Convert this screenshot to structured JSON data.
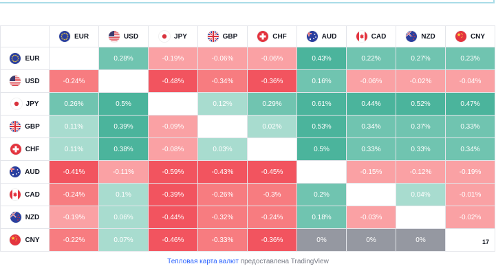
{
  "currencies": [
    "EUR",
    "USD",
    "JPY",
    "GBP",
    "CHF",
    "AUD",
    "CAD",
    "NZD",
    "CNY"
  ],
  "matrix": [
    [
      null,
      "0.28%",
      "-0.19%",
      "-0.06%",
      "-0.06%",
      "0.43%",
      "0.22%",
      "0.27%",
      "0.23%"
    ],
    [
      "-0.24%",
      null,
      "-0.48%",
      "-0.34%",
      "-0.36%",
      "0.16%",
      "-0.06%",
      "-0.02%",
      "-0.04%"
    ],
    [
      "0.26%",
      "0.5%",
      null,
      "0.12%",
      "0.29%",
      "0.61%",
      "0.44%",
      "0.52%",
      "0.47%"
    ],
    [
      "0.11%",
      "0.39%",
      "-0.09%",
      null,
      "0.02%",
      "0.53%",
      "0.34%",
      "0.37%",
      "0.33%"
    ],
    [
      "0.11%",
      "0.38%",
      "-0.08%",
      "0.03%",
      null,
      "0.5%",
      "0.33%",
      "0.33%",
      "0.34%"
    ],
    [
      "-0.41%",
      "-0.11%",
      "-0.59%",
      "-0.43%",
      "-0.45%",
      null,
      "-0.15%",
      "-0.12%",
      "-0.19%"
    ],
    [
      "-0.24%",
      "0.1%",
      "-0.39%",
      "-0.26%",
      "-0.3%",
      "0.2%",
      null,
      "0.04%",
      "-0.01%"
    ],
    [
      "-0.19%",
      "0.06%",
      "-0.44%",
      "-0.32%",
      "-0.24%",
      "0.18%",
      "-0.03%",
      null,
      "-0.02%"
    ],
    [
      "-0.22%",
      "0.07%",
      "-0.46%",
      "-0.33%",
      "-0.36%",
      "0%",
      "0%",
      "0%",
      null
    ]
  ],
  "tv_logo": "17",
  "colors": {
    "pos_strong": "#4bb49c",
    "pos_mid": "#70c4b0",
    "pos_light": "#a8dccf",
    "neg_strong": "#f2545f",
    "neg_mid": "#f77c80",
    "neg_light": "#faa1a4",
    "zero": "#9598a1"
  },
  "flags": {
    "EUR": "eu-flag-icon",
    "USD": "us-flag-icon",
    "JPY": "jp-flag-icon",
    "GBP": "gb-flag-icon",
    "CHF": "ch-flag-icon",
    "AUD": "au-flag-icon",
    "CAD": "ca-flag-icon",
    "NZD": "nz-flag-icon",
    "CNY": "cn-flag-icon"
  },
  "footer": {
    "link_text": "Тепловая карта валют",
    "rest_text": " предоставлена TradingView"
  }
}
